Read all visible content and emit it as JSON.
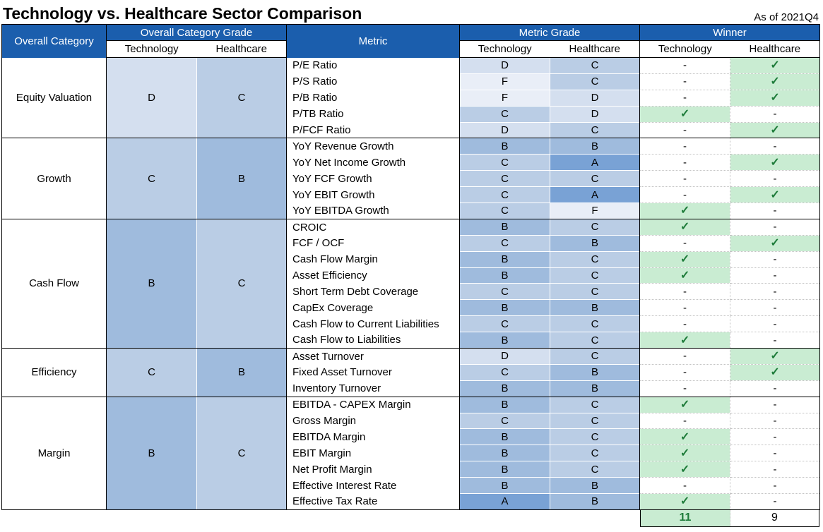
{
  "title": "Technology vs. Healthcare Sector Comparison",
  "as_of": "As of 2021Q4",
  "colors": {
    "header_bg": "#1b5ead",
    "header_text": "#ffffff",
    "grade_A": "#79a2d5",
    "grade_B": "#9fbbdd",
    "grade_C": "#bacde5",
    "grade_D": "#d4dfef",
    "grade_F": "#e9eef7",
    "winner_bg": "#c9ecd2",
    "winner_check_green": "#1e7c3a"
  },
  "table": {
    "headers": {
      "overall_category": "Overall Category",
      "overall_category_grade": "Overall Category Grade",
      "metric": "Metric",
      "metric_grade": "Metric Grade",
      "winner": "Winner",
      "technology": "Technology",
      "healthcare": "Healthcare"
    },
    "win_marker": "✓",
    "no_win_marker": "-",
    "totals": {
      "technology": "11",
      "healthcare": "9"
    },
    "categories": [
      {
        "name": "Equity Valuation",
        "tech_grade": "D",
        "health_grade": "C",
        "metrics": [
          {
            "name": "P/E Ratio",
            "tech": "D",
            "health": "C",
            "winner": "healthcare"
          },
          {
            "name": "P/S Ratio",
            "tech": "F",
            "health": "C",
            "winner": "healthcare"
          },
          {
            "name": "P/B Ratio",
            "tech": "F",
            "health": "D",
            "winner": "healthcare"
          },
          {
            "name": "P/TB Ratio",
            "tech": "C",
            "health": "D",
            "winner": "technology"
          },
          {
            "name": "P/FCF Ratio",
            "tech": "D",
            "health": "C",
            "winner": "healthcare"
          }
        ]
      },
      {
        "name": "Growth",
        "tech_grade": "C",
        "health_grade": "B",
        "metrics": [
          {
            "name": "YoY Revenue Growth",
            "tech": "B",
            "health": "B",
            "winner": "none"
          },
          {
            "name": "YoY Net Income Growth",
            "tech": "C",
            "health": "A",
            "winner": "healthcare"
          },
          {
            "name": "YoY FCF Growth",
            "tech": "C",
            "health": "C",
            "winner": "none"
          },
          {
            "name": "YoY EBIT Growth",
            "tech": "C",
            "health": "A",
            "winner": "healthcare"
          },
          {
            "name": "YoY EBITDA Growth",
            "tech": "C",
            "health": "F",
            "winner": "technology"
          }
        ]
      },
      {
        "name": "Cash Flow",
        "tech_grade": "B",
        "health_grade": "C",
        "metrics": [
          {
            "name": "CROIC",
            "tech": "B",
            "health": "C",
            "winner": "technology"
          },
          {
            "name": "FCF / OCF",
            "tech": "C",
            "health": "B",
            "winner": "healthcare"
          },
          {
            "name": "Cash Flow Margin",
            "tech": "B",
            "health": "C",
            "winner": "technology"
          },
          {
            "name": "Asset Efficiency",
            "tech": "B",
            "health": "C",
            "winner": "technology"
          },
          {
            "name": "Short Term Debt Coverage",
            "tech": "C",
            "health": "C",
            "winner": "none"
          },
          {
            "name": "CapEx Coverage",
            "tech": "B",
            "health": "B",
            "winner": "none"
          },
          {
            "name": "Cash Flow to Current Liabilities",
            "tech": "C",
            "health": "C",
            "winner": "none"
          },
          {
            "name": "Cash Flow to Liabilities",
            "tech": "B",
            "health": "C",
            "winner": "technology"
          }
        ]
      },
      {
        "name": "Efficiency",
        "tech_grade": "C",
        "health_grade": "B",
        "metrics": [
          {
            "name": "Asset Turnover",
            "tech": "D",
            "health": "C",
            "winner": "healthcare"
          },
          {
            "name": "Fixed Asset Turnover",
            "tech": "C",
            "health": "B",
            "winner": "healthcare"
          },
          {
            "name": "Inventory Turnover",
            "tech": "B",
            "health": "B",
            "winner": "none"
          }
        ]
      },
      {
        "name": "Margin",
        "tech_grade": "B",
        "health_grade": "C",
        "metrics": [
          {
            "name": "EBITDA - CAPEX Margin",
            "tech": "B",
            "health": "C",
            "winner": "technology"
          },
          {
            "name": "Gross Margin",
            "tech": "C",
            "health": "C",
            "winner": "none"
          },
          {
            "name": "EBITDA Margin",
            "tech": "B",
            "health": "C",
            "winner": "technology"
          },
          {
            "name": "EBIT Margin",
            "tech": "B",
            "health": "C",
            "winner": "technology"
          },
          {
            "name": "Net Profit Margin",
            "tech": "B",
            "health": "C",
            "winner": "technology"
          },
          {
            "name": "Effective Interest Rate",
            "tech": "B",
            "health": "B",
            "winner": "none"
          },
          {
            "name": "Effective Tax Rate",
            "tech": "A",
            "health": "B",
            "winner": "technology"
          }
        ]
      }
    ]
  },
  "chart_data": {
    "type": "table",
    "title": "Technology vs. Healthcare Sector Comparison",
    "as_of": "2021Q4",
    "columns": [
      "Overall Category",
      "Overall Category Grade - Technology",
      "Overall Category Grade - Healthcare",
      "Metric",
      "Metric Grade - Technology",
      "Metric Grade - Healthcare",
      "Winner - Technology",
      "Winner - Healthcare"
    ],
    "rows": [
      [
        "Equity Valuation",
        "D",
        "C",
        "P/E Ratio",
        "D",
        "C",
        "-",
        "✓"
      ],
      [
        "",
        "",
        "",
        "P/S Ratio",
        "F",
        "C",
        "-",
        "✓"
      ],
      [
        "",
        "",
        "",
        "P/B Ratio",
        "F",
        "D",
        "-",
        "✓"
      ],
      [
        "",
        "",
        "",
        "P/TB Ratio",
        "C",
        "D",
        "✓",
        "-"
      ],
      [
        "",
        "",
        "",
        "P/FCF Ratio",
        "D",
        "C",
        "-",
        "✓"
      ],
      [
        "Growth",
        "C",
        "B",
        "YoY Revenue Growth",
        "B",
        "B",
        "-",
        "-"
      ],
      [
        "",
        "",
        "",
        "YoY Net Income Growth",
        "C",
        "A",
        "-",
        "✓"
      ],
      [
        "",
        "",
        "",
        "YoY FCF Growth",
        "C",
        "C",
        "-",
        "-"
      ],
      [
        "",
        "",
        "",
        "YoY EBIT Growth",
        "C",
        "A",
        "-",
        "✓"
      ],
      [
        "",
        "",
        "",
        "YoY EBITDA Growth",
        "C",
        "F",
        "✓",
        "-"
      ],
      [
        "Cash Flow",
        "B",
        "C",
        "CROIC",
        "B",
        "C",
        "✓",
        "-"
      ],
      [
        "",
        "",
        "",
        "FCF / OCF",
        "C",
        "B",
        "-",
        "✓"
      ],
      [
        "",
        "",
        "",
        "Cash Flow Margin",
        "B",
        "C",
        "✓",
        "-"
      ],
      [
        "",
        "",
        "",
        "Asset Efficiency",
        "B",
        "C",
        "✓",
        "-"
      ],
      [
        "",
        "",
        "",
        "Short Term Debt Coverage",
        "C",
        "C",
        "-",
        "-"
      ],
      [
        "",
        "",
        "",
        "CapEx Coverage",
        "B",
        "B",
        "-",
        "-"
      ],
      [
        "",
        "",
        "",
        "Cash Flow to Current Liabilities",
        "C",
        "C",
        "-",
        "-"
      ],
      [
        "",
        "",
        "",
        "Cash Flow to Liabilities",
        "B",
        "C",
        "✓",
        "-"
      ],
      [
        "Efficiency",
        "C",
        "B",
        "Asset Turnover",
        "D",
        "C",
        "-",
        "✓"
      ],
      [
        "",
        "",
        "",
        "Fixed Asset Turnover",
        "C",
        "B",
        "-",
        "✓"
      ],
      [
        "",
        "",
        "",
        "Inventory Turnover",
        "B",
        "B",
        "-",
        "-"
      ],
      [
        "Margin",
        "B",
        "C",
        "EBITDA - CAPEX Margin",
        "B",
        "C",
        "✓",
        "-"
      ],
      [
        "",
        "",
        "",
        "Gross Margin",
        "C",
        "C",
        "-",
        "-"
      ],
      [
        "",
        "",
        "",
        "EBITDA Margin",
        "B",
        "C",
        "✓",
        "-"
      ],
      [
        "",
        "",
        "",
        "EBIT Margin",
        "B",
        "C",
        "✓",
        "-"
      ],
      [
        "",
        "",
        "",
        "Net Profit Margin",
        "B",
        "C",
        "✓",
        "-"
      ],
      [
        "",
        "",
        "",
        "Effective Interest Rate",
        "B",
        "B",
        "-",
        "-"
      ],
      [
        "",
        "",
        "",
        "Effective Tax Rate",
        "A",
        "B",
        "✓",
        "-"
      ]
    ],
    "totals": {
      "technology_wins": 11,
      "healthcare_wins": 9
    }
  }
}
